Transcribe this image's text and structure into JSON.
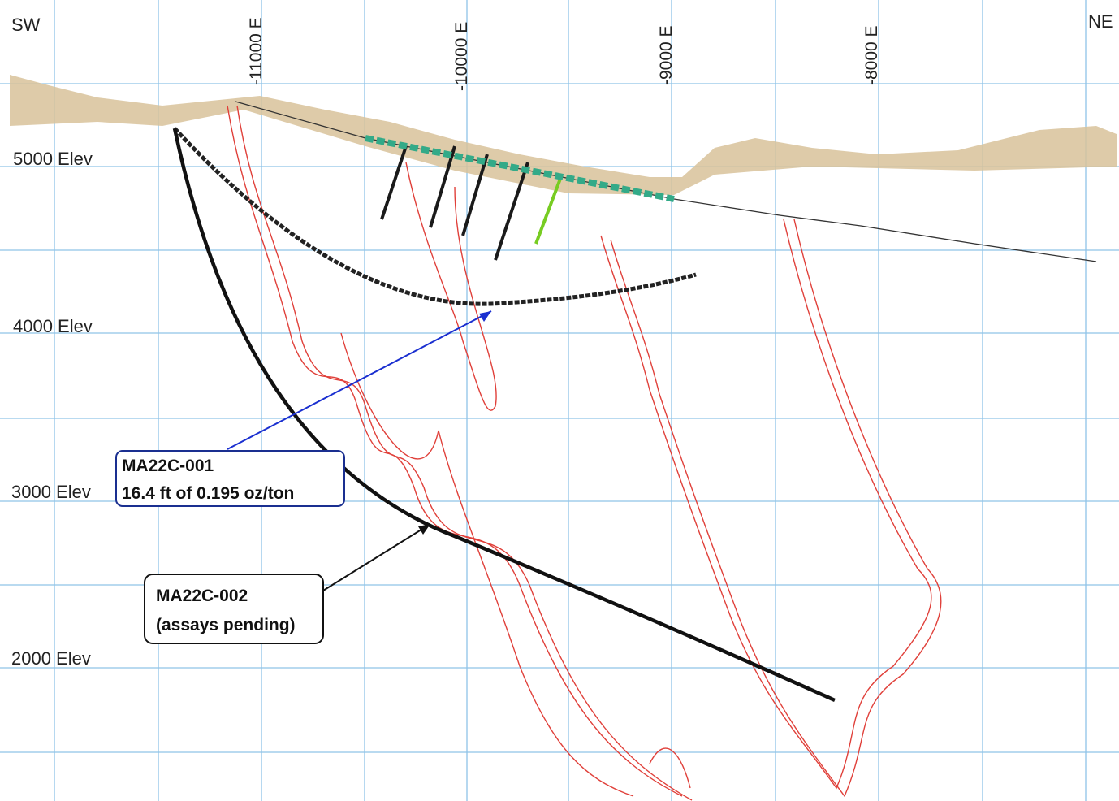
{
  "header": {
    "left": "SW",
    "right": "NE"
  },
  "eastings": [
    "-11000 E",
    "-10000 E",
    "-9000 E",
    "-8000 E"
  ],
  "elevations": [
    "5000 Elev",
    "4000 Elev",
    "3000 Elev",
    "2000 Elev"
  ],
  "callouts": [
    {
      "hole": "MA22C-001",
      "text": "16.4 ft of 0.195 oz/ton"
    },
    {
      "hole": "MA22C-002",
      "text": "(assays pending)"
    }
  ]
}
